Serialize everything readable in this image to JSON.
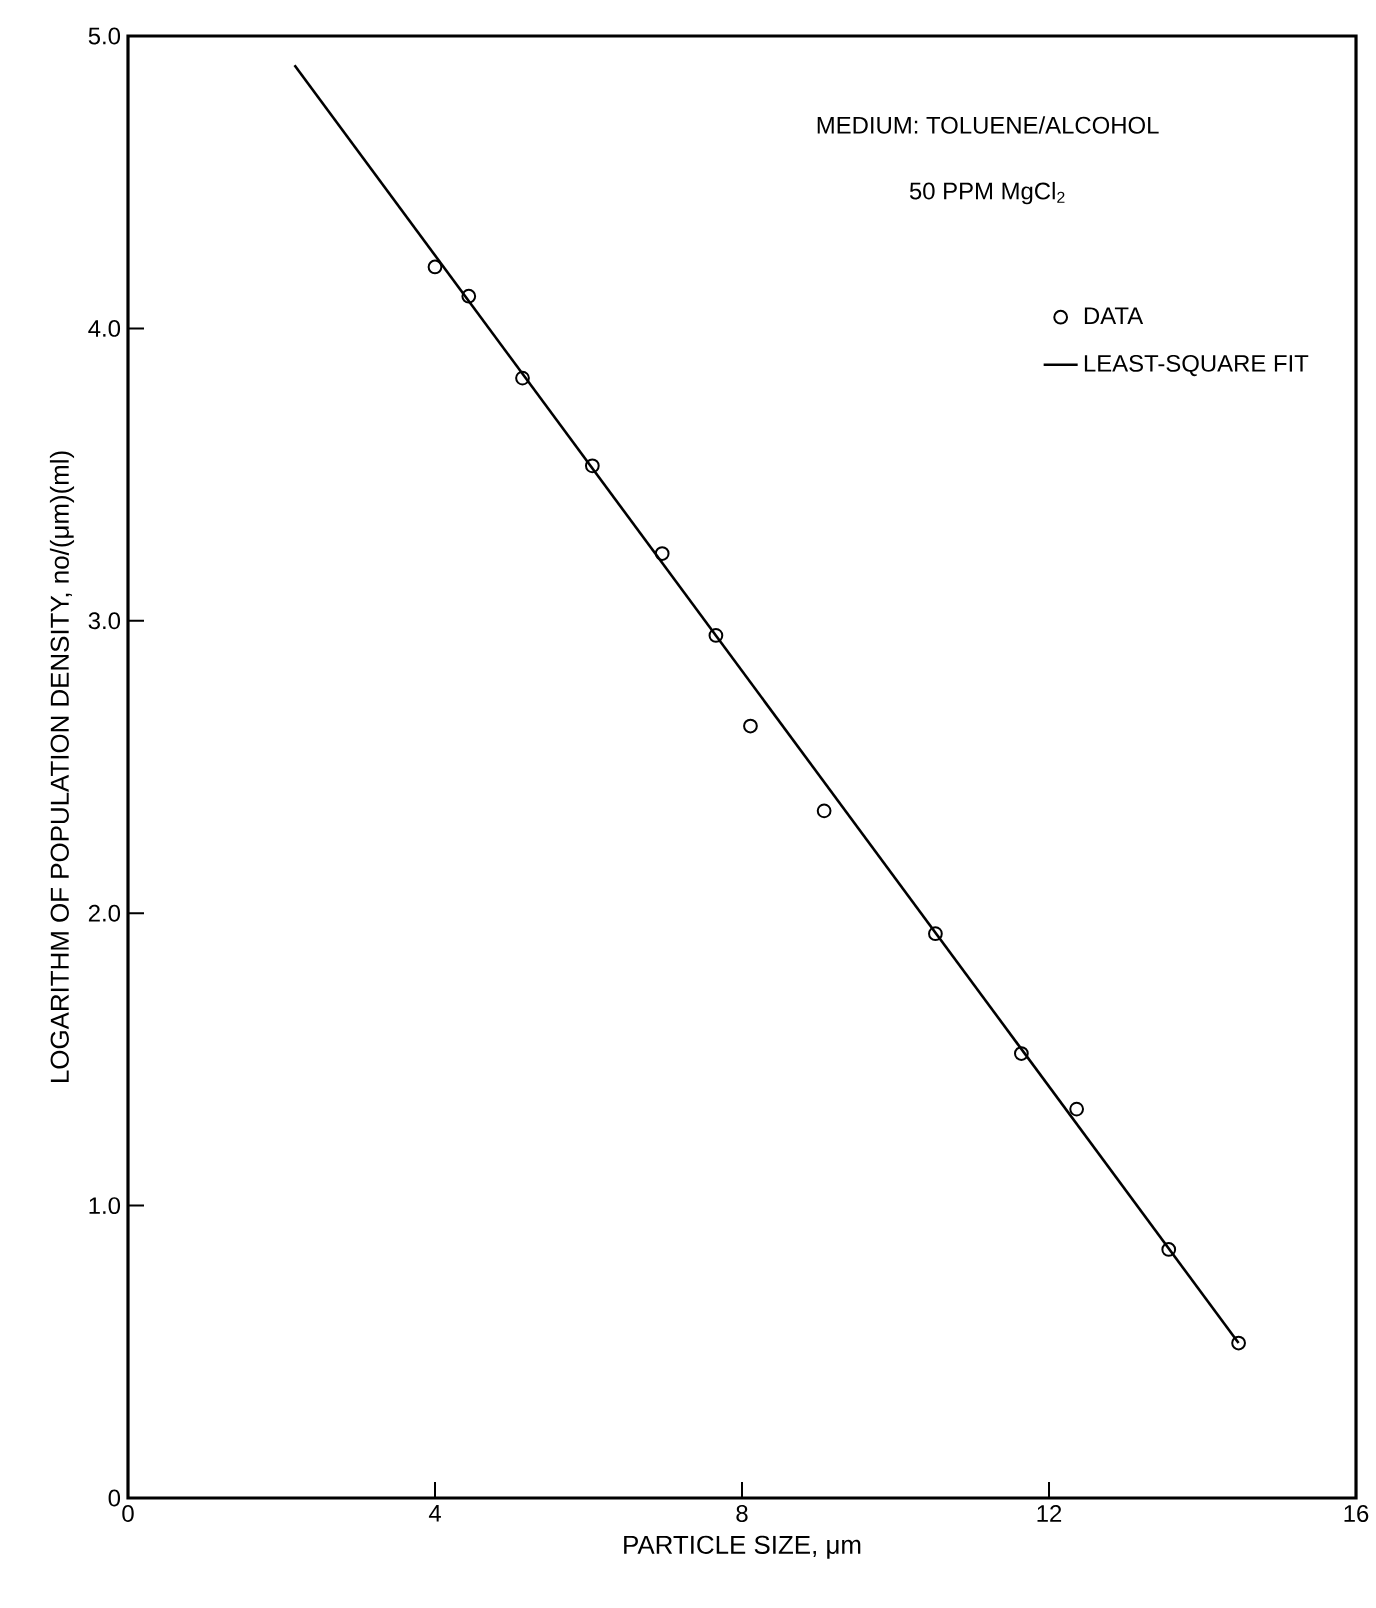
{
  "chart_data": {
    "type": "scatter",
    "xlabel": "PARTICLE SIZE,  μm",
    "ylabel": "LOGARITHM OF POPULATION DENSITY, no/(μm)(ml)",
    "annotations": [
      "MEDIUM:  TOLUENE/ALCOHOL",
      "50 PPM   MgCl$_{2}$"
    ],
    "series": [
      {
        "name": "DATA",
        "marker": "circle",
        "color": "#000000",
        "x": [
          4.0,
          4.44,
          5.14,
          6.05,
          6.96,
          7.66,
          8.11,
          9.07,
          10.52,
          11.64,
          12.36,
          13.56,
          14.47
        ],
        "values": [
          4.21,
          4.11,
          3.83,
          3.53,
          3.23,
          2.95,
          2.64,
          2.35,
          1.93,
          1.52,
          1.33,
          0.85,
          0.53
        ]
      },
      {
        "name": "LEAST-SQUARE FIT",
        "type": "line",
        "marker": "none",
        "line_style": "solid",
        "color": "#000000",
        "x": [
          2.17,
          14.47
        ],
        "values": [
          4.9,
          0.53
        ]
      }
    ],
    "xlim": [
      0,
      16
    ],
    "xticks": [
      0,
      4,
      8,
      12,
      16
    ],
    "ylim": [
      0,
      5
    ],
    "yticks": [
      {
        "value": 0,
        "label": "0"
      },
      {
        "value": 1,
        "label": "1.0"
      },
      {
        "value": 2,
        "label": "2.0"
      },
      {
        "value": 3,
        "label": "3.0"
      },
      {
        "value": 4,
        "label": "4.0"
      },
      {
        "value": 5,
        "label": "5.0"
      }
    ],
    "grid": false,
    "legend": "top right"
  }
}
